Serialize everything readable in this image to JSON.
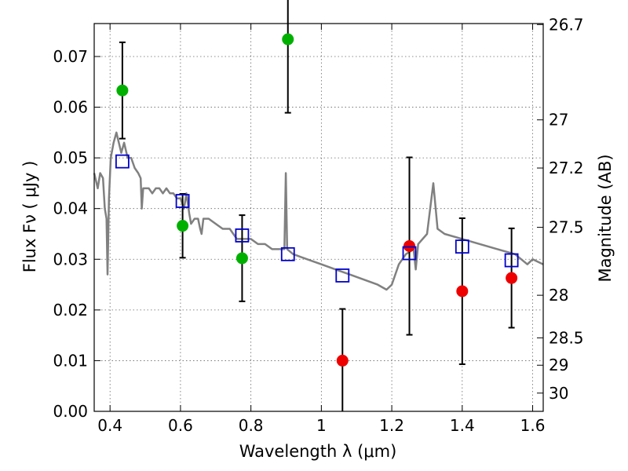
{
  "chart_data": {
    "type": "scatter",
    "xlabel": "Wavelength  λ (μm)",
    "ylabel": "Flux  Fν  ( μJy )",
    "y2label": "Magnitude (AB)",
    "xlim": [
      0.355,
      1.63
    ],
    "ylim": [
      0.0,
      0.0765
    ],
    "xticks": [
      0.4,
      0.6,
      0.8,
      1.0,
      1.2,
      1.4,
      1.6
    ],
    "xtick_labels": [
      "0.4",
      "0.6",
      "0.8",
      "1",
      "1.2",
      "1.4",
      "1.6"
    ],
    "yticks": [
      0.0,
      0.01,
      0.02,
      0.03,
      0.04,
      0.05,
      0.06,
      0.07
    ],
    "ytick_labels": [
      "0.00",
      "0.01",
      "0.02",
      "0.03",
      "0.04",
      "0.05",
      "0.06",
      "0.07"
    ],
    "y2ticks": [
      {
        "label": "26.7",
        "flux": 0.0763
      },
      {
        "label": "27",
        "flux": 0.0575
      },
      {
        "label": "27.2",
        "flux": 0.048
      },
      {
        "label": "27.5",
        "flux": 0.0363
      },
      {
        "label": "28",
        "flux": 0.0229
      },
      {
        "label": "28.5",
        "flux": 0.0145
      },
      {
        "label": "29",
        "flux": 0.0091
      },
      {
        "label": "30",
        "flux": 0.0036
      }
    ],
    "grid": true,
    "colors": {
      "detection": "#00b000",
      "upper_limit": "#ee0000",
      "model_band": "#0000cc",
      "sed_line": "#808080"
    },
    "series": [
      {
        "marker": "circle-green",
        "points": [
          {
            "x": 0.435,
            "y": 0.0633,
            "err": 0.0095
          },
          {
            "x": 0.606,
            "y": 0.0366,
            "err": 0.0063
          },
          {
            "x": 0.775,
            "y": 0.0302,
            "err": 0.0085
          },
          {
            "x": 0.905,
            "y": 0.0734,
            "err": 0.0145
          }
        ]
      },
      {
        "marker": "circle-red",
        "points": [
          {
            "x": 1.06,
            "y": 0.01,
            "err": 0.0102
          },
          {
            "x": 1.25,
            "y": 0.0326,
            "err": 0.0175
          },
          {
            "x": 1.4,
            "y": 0.0237,
            "err": 0.0144
          },
          {
            "x": 1.54,
            "y": 0.0263,
            "err": 0.0098
          }
        ]
      },
      {
        "marker": "square-blue-open",
        "points": [
          {
            "x": 0.435,
            "y": 0.0493
          },
          {
            "x": 0.606,
            "y": 0.0415
          },
          {
            "x": 0.775,
            "y": 0.0347
          },
          {
            "x": 0.905,
            "y": 0.031
          },
          {
            "x": 1.06,
            "y": 0.0268
          },
          {
            "x": 1.25,
            "y": 0.0312
          },
          {
            "x": 1.4,
            "y": 0.0325
          },
          {
            "x": 1.54,
            "y": 0.0298
          }
        ]
      },
      {
        "marker": "line-gray",
        "points": [
          [
            0.355,
            0.047
          ],
          [
            0.365,
            0.044
          ],
          [
            0.372,
            0.047
          ],
          [
            0.38,
            0.046
          ],
          [
            0.385,
            0.04
          ],
          [
            0.39,
            0.038
          ],
          [
            0.393,
            0.027
          ],
          [
            0.397,
            0.042
          ],
          [
            0.402,
            0.05
          ],
          [
            0.41,
            0.053
          ],
          [
            0.418,
            0.055
          ],
          [
            0.425,
            0.053
          ],
          [
            0.432,
            0.051
          ],
          [
            0.44,
            0.053
          ],
          [
            0.45,
            0.05
          ],
          [
            0.46,
            0.05
          ],
          [
            0.47,
            0.048
          ],
          [
            0.48,
            0.047
          ],
          [
            0.487,
            0.046
          ],
          [
            0.49,
            0.04
          ],
          [
            0.494,
            0.044
          ],
          [
            0.5,
            0.044
          ],
          [
            0.51,
            0.044
          ],
          [
            0.52,
            0.043
          ],
          [
            0.53,
            0.044
          ],
          [
            0.54,
            0.044
          ],
          [
            0.55,
            0.043
          ],
          [
            0.56,
            0.044
          ],
          [
            0.57,
            0.043
          ],
          [
            0.58,
            0.043
          ],
          [
            0.59,
            0.042
          ],
          [
            0.6,
            0.042
          ],
          [
            0.61,
            0.04
          ],
          [
            0.617,
            0.043
          ],
          [
            0.625,
            0.039
          ],
          [
            0.63,
            0.037
          ],
          [
            0.64,
            0.038
          ],
          [
            0.65,
            0.038
          ],
          [
            0.656,
            0.036
          ],
          [
            0.66,
            0.035
          ],
          [
            0.665,
            0.038
          ],
          [
            0.68,
            0.038
          ],
          [
            0.7,
            0.037
          ],
          [
            0.72,
            0.036
          ],
          [
            0.74,
            0.036
          ],
          [
            0.76,
            0.034
          ],
          [
            0.78,
            0.034
          ],
          [
            0.8,
            0.034
          ],
          [
            0.82,
            0.033
          ],
          [
            0.84,
            0.033
          ],
          [
            0.86,
            0.032
          ],
          [
            0.88,
            0.032
          ],
          [
            0.895,
            0.032
          ],
          [
            0.899,
            0.047
          ],
          [
            0.903,
            0.032
          ],
          [
            0.92,
            0.031
          ],
          [
            0.96,
            0.03
          ],
          [
            1.0,
            0.029
          ],
          [
            1.04,
            0.028
          ],
          [
            1.08,
            0.027
          ],
          [
            1.12,
            0.026
          ],
          [
            1.16,
            0.025
          ],
          [
            1.185,
            0.024
          ],
          [
            1.2,
            0.025
          ],
          [
            1.22,
            0.029
          ],
          [
            1.24,
            0.031
          ],
          [
            1.262,
            0.032
          ],
          [
            1.268,
            0.028
          ],
          [
            1.275,
            0.033
          ],
          [
            1.3,
            0.035
          ],
          [
            1.318,
            0.045
          ],
          [
            1.33,
            0.036
          ],
          [
            1.35,
            0.035
          ],
          [
            1.4,
            0.034
          ],
          [
            1.45,
            0.033
          ],
          [
            1.5,
            0.032
          ],
          [
            1.55,
            0.031
          ],
          [
            1.585,
            0.029
          ],
          [
            1.6,
            0.03
          ],
          [
            1.63,
            0.029
          ]
        ]
      }
    ]
  }
}
